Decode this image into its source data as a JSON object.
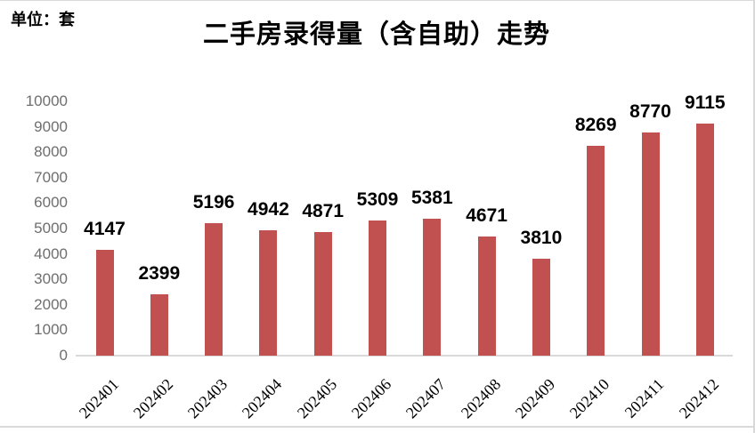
{
  "header": {
    "unit_label": "单位：套",
    "title": "二手房录得量（含自助）走势"
  },
  "chart_data": {
    "type": "bar",
    "title": "二手房录得量（含自助）走势",
    "unit": "套",
    "categories": [
      "202401",
      "202402",
      "202403",
      "202404",
      "202405",
      "202406",
      "202407",
      "202408",
      "202409",
      "202410",
      "202411",
      "202412"
    ],
    "values": [
      4147,
      2399,
      5196,
      4942,
      4871,
      5309,
      5381,
      4671,
      3810,
      8269,
      8770,
      9115
    ],
    "xlabel": "",
    "ylabel": "",
    "ylim": [
      0,
      10000
    ],
    "ytick_step": 1000,
    "grid": false,
    "legend": "none",
    "bar_color": "#C15150",
    "axis_line_color": "#d9d9d9",
    "ytick_color": "#6e6e6e",
    "value_label_color": "#000000"
  }
}
